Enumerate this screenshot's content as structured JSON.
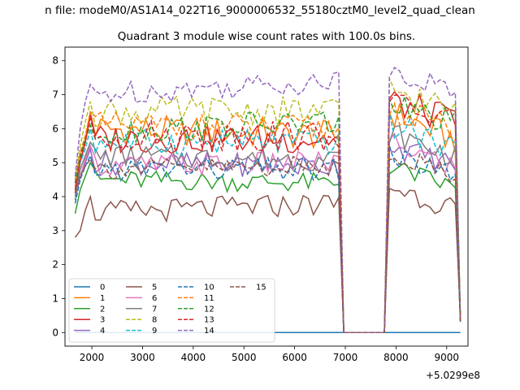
{
  "chart_data": {
    "type": "line",
    "suptitle": "n file: modeM0/AS1A14_022T16_9000006532_55180cztM0_level2_quad_clean",
    "title": "Quadrant 3 module wise count rates with 100.0s bins.",
    "xlabel": "",
    "ylabel": "",
    "x_offset_label": "+5.0299e8",
    "xlim": [
      1470,
      9420
    ],
    "ylim": [
      -0.4,
      8.4
    ],
    "x_ticks": [
      2000,
      3000,
      4000,
      5000,
      6000,
      7000,
      8000,
      9000
    ],
    "x_tick_labels": [
      "2000",
      "3000",
      "4000",
      "5000",
      "6000",
      "7000",
      "8000",
      "9000"
    ],
    "y_ticks": [
      0,
      1,
      2,
      3,
      4,
      5,
      6,
      7,
      8
    ],
    "y_tick_labels": [
      "0",
      "1",
      "2",
      "3",
      "4",
      "5",
      "6",
      "7",
      "8"
    ],
    "grid": false,
    "legend_placement": "lower-left",
    "x_start": 1670,
    "x_step": 100,
    "segments": [
      [
        1670,
        6870
      ],
      [
        7870,
        9270
      ]
    ],
    "dropout_x": [
      6970,
      7770
    ],
    "series": [
      {
        "name": "0",
        "color": "#1f77b4",
        "dash": "solid",
        "constant": 0
      },
      {
        "name": "1",
        "color": "#ff7f0e",
        "dash": "solid",
        "base": [
          4.3,
          5.2,
          5.7,
          6.5
        ],
        "plateau": 6.0,
        "plateau_end": 5.8,
        "amp": 0.45,
        "burst": 6.5,
        "burst_end": 5.6
      },
      {
        "name": "2",
        "color": "#2ca02c",
        "dash": "solid",
        "base": [
          3.5,
          4.2,
          4.6,
          5.0
        ],
        "plateau": 4.5,
        "plateau_end": 4.4,
        "amp": 0.3,
        "burst": 4.9,
        "burst_end": 4.2
      },
      {
        "name": "3",
        "color": "#d62728",
        "dash": "solid",
        "base": [
          4.1,
          5.0,
          5.6,
          6.4
        ],
        "plateau": 5.7,
        "plateau_end": 5.7,
        "amp": 0.45,
        "burst": 6.8,
        "burst_end": 6.2
      },
      {
        "name": "4",
        "color": "#9467bd",
        "dash": "solid",
        "base": [
          3.9,
          4.6,
          5.0,
          5.4
        ],
        "plateau": 5.0,
        "plateau_end": 4.9,
        "amp": 0.35,
        "burst": 5.5,
        "burst_end": 4.9
      },
      {
        "name": "5",
        "color": "#8c564b",
        "dash": "solid",
        "base": [
          2.8,
          3.0,
          3.6,
          4.0
        ],
        "plateau": 3.5,
        "plateau_end": 3.8,
        "amp": 0.35,
        "burst": 4.3,
        "burst_end": 3.6
      },
      {
        "name": "6",
        "color": "#e377c2",
        "dash": "solid",
        "base": [
          4.0,
          4.6,
          5.1,
          5.5
        ],
        "plateau": 4.9,
        "plateau_end": 5.0,
        "amp": 0.35,
        "burst": 5.6,
        "burst_end": 4.8
      },
      {
        "name": "7",
        "color": "#7f7f7f",
        "dash": "solid",
        "base": [
          4.0,
          4.8,
          5.2,
          5.6
        ],
        "plateau": 5.2,
        "plateau_end": 5.1,
        "amp": 0.35,
        "burst": 5.9,
        "burst_end": 5.1
      },
      {
        "name": "8",
        "color": "#bcbd22",
        "dash": "dashed",
        "base": [
          4.5,
          5.5,
          6.2,
          6.8
        ],
        "plateau": 6.5,
        "plateau_end": 6.5,
        "amp": 0.45,
        "burst": 7.2,
        "burst_end": 6.4
      },
      {
        "name": "9",
        "color": "#17becf",
        "dash": "dashed",
        "base": [
          4.2,
          5.0,
          5.4,
          6.0
        ],
        "plateau": 5.6,
        "plateau_end": 5.6,
        "amp": 0.4,
        "burst": 6.1,
        "burst_end": 5.4
      },
      {
        "name": "10",
        "color": "#1f77b4",
        "dash": "dashed",
        "base": [
          3.8,
          4.5,
          4.9,
          5.2
        ],
        "plateau": 4.8,
        "plateau_end": 4.8,
        "amp": 0.35,
        "burst": 5.2,
        "burst_end": 4.6
      },
      {
        "name": "11",
        "color": "#ff7f0e",
        "dash": "dashed",
        "base": [
          4.4,
          5.3,
          5.8,
          6.5
        ],
        "plateau": 6.1,
        "plateau_end": 6.0,
        "amp": 0.4,
        "burst": 6.6,
        "burst_end": 5.9
      },
      {
        "name": "12",
        "color": "#2ca02c",
        "dash": "dashed",
        "base": [
          4.4,
          5.2,
          5.7,
          6.1
        ],
        "plateau": 5.9,
        "plateau_end": 6.2,
        "amp": 0.4,
        "burst": 6.7,
        "burst_end": 6.1
      },
      {
        "name": "13",
        "color": "#d62728",
        "dash": "dashed",
        "base": [
          4.2,
          5.1,
          5.6,
          6.3
        ],
        "plateau": 5.8,
        "plateau_end": 5.8,
        "amp": 0.45,
        "burst": 6.7,
        "burst_end": 6.2
      },
      {
        "name": "14",
        "color": "#9467bd",
        "dash": "dashed",
        "base": [
          4.6,
          6.0,
          6.8,
          7.3
        ],
        "plateau": 7.0,
        "plateau_end": 7.4,
        "amp": 0.35,
        "burst": 7.8,
        "burst_end": 7.0
      },
      {
        "name": "15",
        "color": "#8c564b",
        "dash": "dashed",
        "base": [
          4.1,
          4.6,
          4.9,
          5.1
        ],
        "plateau": 4.8,
        "plateau_end": 4.9,
        "amp": 0.3,
        "burst": 5.3,
        "burst_end": 4.6
      }
    ]
  }
}
